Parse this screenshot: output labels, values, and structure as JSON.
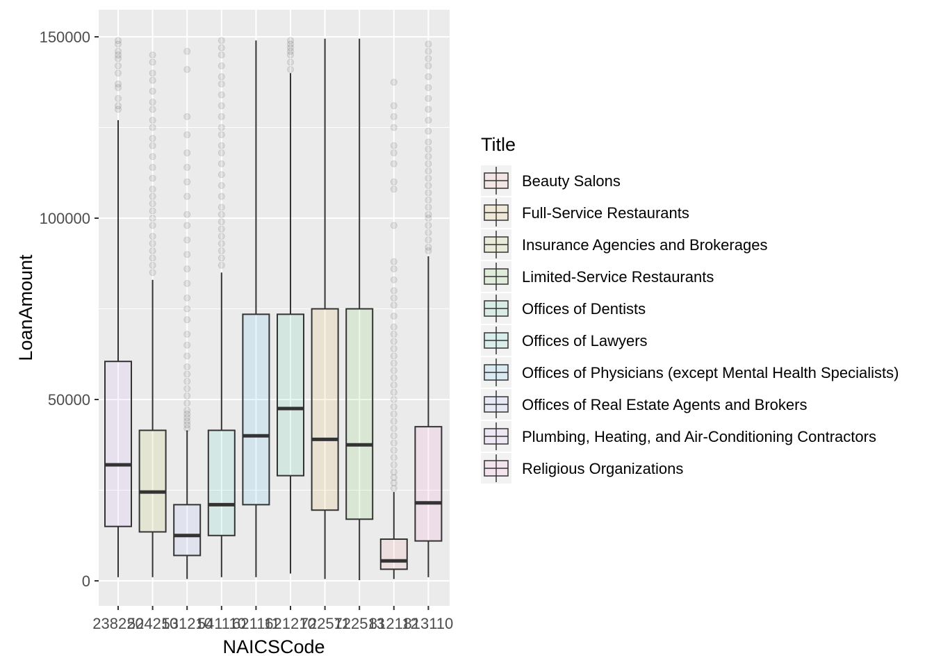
{
  "chart_data": {
    "type": "boxplot",
    "xlabel": "NAICSCode",
    "ylabel": "LoanAmount",
    "ylim": [
      -7000,
      157000
    ],
    "yticks": [
      0,
      50000,
      100000,
      150000
    ],
    "ytick_labels": [
      "0",
      "50000",
      "100000",
      "150000"
    ],
    "grid": true,
    "legend": {
      "title": "Title",
      "placement": "right"
    },
    "categories": [
      "238220",
      "524210",
      "531210",
      "541110",
      "621111",
      "621210",
      "722511",
      "722513",
      "812112",
      "813110"
    ],
    "series": [
      {
        "code": "238220",
        "name": "Plumbing, Heating, and Air-Conditioning Contractors",
        "color": "#c77cff",
        "min": 1000,
        "q1": 15000,
        "median": 32000,
        "q3": 60500,
        "max": 127000,
        "outliers": [
          130000,
          131000,
          133000,
          136000,
          137000,
          140000,
          142000,
          144000,
          145000,
          146000,
          148000,
          149000
        ]
      },
      {
        "code": "524210",
        "name": "Insurance Agencies and Brokerages",
        "color": "#a3a500",
        "min": 1000,
        "q1": 13500,
        "median": 24500,
        "q3": 41500,
        "max": 83000,
        "outliers": [
          85000,
          87000,
          89000,
          91000,
          93000,
          95000,
          98000,
          100000,
          102000,
          104000,
          106000,
          108000,
          111000,
          114000,
          117000,
          120000,
          122000,
          125000,
          127000,
          130000,
          132000,
          135000,
          138000,
          140000,
          143000,
          145000
        ]
      },
      {
        "code": "531210",
        "name": "Offices of Real Estate Agents and Brokers",
        "color": "#8494ff",
        "min": 500,
        "q1": 7000,
        "median": 12500,
        "q3": 21000,
        "max": 41500,
        "outliers": [
          42000,
          43000,
          44000,
          45000,
          46000,
          47000,
          49000,
          51000,
          53000,
          55000,
          57000,
          59000,
          62000,
          65000,
          68000,
          72000,
          75000,
          78000,
          82000,
          86000,
          90000,
          94000,
          98000,
          101000,
          106000,
          110000,
          114000,
          118000,
          123000,
          128000,
          141000,
          146000
        ]
      },
      {
        "code": "541110",
        "name": "Offices of Lawyers",
        "color": "#00c1aa",
        "min": 1000,
        "q1": 12500,
        "median": 21000,
        "q3": 41500,
        "max": 85000,
        "outliers": [
          87000,
          89000,
          91000,
          93000,
          95000,
          97000,
          99000,
          101000,
          103000,
          106000,
          109000,
          112000,
          115000,
          118000,
          120000,
          123000,
          125000,
          128000,
          131000,
          134000,
          137000,
          139000,
          142000,
          145000,
          147000,
          149000
        ]
      },
      {
        "code": "621111",
        "name": "Offices of Physicians (except Mental Health Specialists)",
        "color": "#00a9ff",
        "min": 1000,
        "q1": 21000,
        "median": 40000,
        "q3": 73500,
        "max": 149000,
        "outliers": []
      },
      {
        "code": "621210",
        "name": "Offices of Dentists",
        "color": "#00bf7d",
        "min": 2000,
        "q1": 29000,
        "median": 47500,
        "q3": 73500,
        "max": 140000,
        "outliers": [
          141000,
          143000,
          145000,
          146000,
          147000,
          148000,
          149000
        ]
      },
      {
        "code": "722511",
        "name": "Full-Service Restaurants",
        "color": "#d89000",
        "min": 500,
        "q1": 19500,
        "median": 39000,
        "q3": 75000,
        "max": 149500,
        "outliers": []
      },
      {
        "code": "722513",
        "name": "Limited-Service Restaurants",
        "color": "#39b600",
        "min": 200,
        "q1": 17000,
        "median": 37500,
        "q3": 75000,
        "max": 149500,
        "outliers": []
      },
      {
        "code": "812112",
        "name": "Beauty Salons",
        "color": "#f8766d",
        "min": 500,
        "q1": 3200,
        "median": 5500,
        "q3": 11500,
        "max": 24500,
        "outliers": [
          25500,
          27000,
          28500,
          30000,
          32000,
          34000,
          36000,
          38000,
          40000,
          42000,
          44000,
          46000,
          48000,
          50000,
          52000,
          54000,
          56000,
          58000,
          60000,
          62000,
          64000,
          66000,
          68000,
          70000,
          73000,
          76000,
          78000,
          80000,
          83000,
          86000,
          88000,
          98000,
          108000,
          110000,
          115000,
          118000,
          120000,
          125000,
          128000,
          131000,
          137500
        ]
      },
      {
        "code": "813110",
        "name": "Religious Organizations",
        "color": "#ff61c3",
        "min": 1000,
        "q1": 11000,
        "median": 21500,
        "q3": 42500,
        "max": 89500,
        "outliers": [
          91000,
          92000,
          94000,
          96000,
          98000,
          100000,
          101000,
          103000,
          105000,
          107000,
          109000,
          111000,
          113000,
          115000,
          117000,
          119000,
          121000,
          124000,
          127000,
          130000,
          133000,
          136000,
          139000,
          142000,
          144000,
          146000,
          148000
        ]
      }
    ],
    "legend_entries": [
      {
        "label": "Beauty Salons",
        "color": "#f8766d"
      },
      {
        "label": "Full-Service Restaurants",
        "color": "#d89000"
      },
      {
        "label": "Insurance Agencies and Brokerages",
        "color": "#a3a500"
      },
      {
        "label": "Limited-Service Restaurants",
        "color": "#39b600"
      },
      {
        "label": "Offices of Dentists",
        "color": "#00bf7d"
      },
      {
        "label": "Offices of Lawyers",
        "color": "#00c1aa"
      },
      {
        "label": "Offices of Physicians (except Mental Health Specialists)",
        "color": "#00a9ff"
      },
      {
        "label": "Offices of Real Estate Agents and Brokers",
        "color": "#8494ff"
      },
      {
        "label": "Plumbing, Heating, and Air-Conditioning Contractors",
        "color": "#c77cff"
      },
      {
        "label": "Religious Organizations",
        "color": "#ff61c3"
      }
    ]
  }
}
